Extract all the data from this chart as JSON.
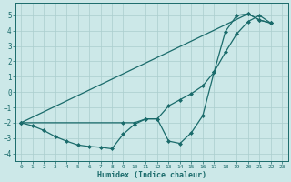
{
  "xlabel": "Humidex (Indice chaleur)",
  "color": "#1a6b6b",
  "bg_color": "#cce8e8",
  "grid_color": "#aacece",
  "ylim": [
    -4.5,
    5.8
  ],
  "xlim": [
    -0.5,
    23.5
  ],
  "yticks": [
    -4,
    -3,
    -2,
    -1,
    0,
    1,
    2,
    3,
    4,
    5
  ],
  "xticks": [
    0,
    1,
    2,
    3,
    4,
    5,
    6,
    7,
    8,
    9,
    10,
    11,
    12,
    13,
    14,
    15,
    16,
    17,
    18,
    19,
    20,
    21,
    22,
    23
  ],
  "markersize": 2.0,
  "linewidth": 0.9,
  "line1_x": [
    0,
    1,
    2,
    3,
    4,
    5,
    6,
    7,
    8,
    9,
    10,
    11,
    12,
    13,
    14,
    15,
    16,
    17,
    18,
    19,
    20,
    21,
    22
  ],
  "line1_y": [
    -2.0,
    -2.2,
    -2.5,
    -2.9,
    -3.2,
    -3.45,
    -3.55,
    -3.6,
    -3.7,
    -2.75,
    -2.1,
    -1.75,
    -1.75,
    -3.2,
    -3.35,
    -2.65,
    -1.55,
    1.3,
    3.95,
    5.0,
    5.1,
    4.7,
    4.5
  ],
  "line2_x": [
    0,
    9,
    10,
    11,
    12,
    13,
    14,
    15,
    16,
    17,
    18,
    19,
    20,
    21,
    22
  ],
  "line2_y": [
    -2.0,
    -2.0,
    -2.0,
    -1.75,
    -1.75,
    -0.9,
    -0.5,
    -0.1,
    0.4,
    1.3,
    2.6,
    3.8,
    4.6,
    5.0,
    4.5
  ],
  "line3_x": [
    0,
    20,
    21,
    22
  ],
  "line3_y": [
    -2.0,
    5.1,
    4.7,
    4.5
  ]
}
